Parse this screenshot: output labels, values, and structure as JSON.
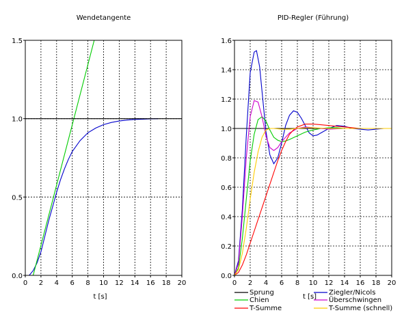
{
  "chart_data": [
    {
      "type": "line",
      "title": "Wendetangente",
      "xlabel": "t [s]",
      "ylabel": "",
      "xlim": [
        0,
        20
      ],
      "ylim": [
        0,
        1.5
      ],
      "xticks": [
        0,
        2,
        4,
        6,
        8,
        10,
        12,
        14,
        16,
        18,
        20
      ],
      "yticks": [
        0.0,
        0.5,
        1.0,
        1.5
      ],
      "ytick_labels": [
        "0.0",
        "0.5",
        "1.0",
        "1.5"
      ],
      "grid": true,
      "series": [
        {
          "color": "#0000cc",
          "x": [
            0,
            0.5,
            1,
            1.5,
            2,
            2.5,
            3,
            3.5,
            4,
            4.5,
            5,
            5.5,
            6,
            7,
            8,
            9,
            10,
            11,
            12,
            13,
            14,
            15,
            16,
            17
          ],
          "y": [
            0,
            0.0,
            0.03,
            0.08,
            0.15,
            0.25,
            0.35,
            0.44,
            0.53,
            0.61,
            0.68,
            0.74,
            0.79,
            0.86,
            0.91,
            0.94,
            0.962,
            0.976,
            0.985,
            0.991,
            0.995,
            0.997,
            0.999,
            1.0
          ]
        },
        {
          "color": "#00cc00",
          "x": [
            1.0,
            8.8
          ],
          "y": [
            0.0,
            1.5
          ]
        },
        {
          "color": "#000000",
          "x": [
            0,
            20
          ],
          "y": [
            1.0,
            1.0
          ]
        }
      ]
    },
    {
      "type": "line",
      "title": "PID-Regler (Führung)",
      "xlabel": "t [s]",
      "ylabel": "",
      "xlim": [
        0,
        20
      ],
      "ylim": [
        0,
        1.6
      ],
      "xticks": [
        0,
        2,
        4,
        6,
        8,
        10,
        12,
        14,
        16,
        18,
        20
      ],
      "yticks": [
        0,
        0.2,
        0.4,
        0.6,
        0.8,
        1.0,
        1.2,
        1.4,
        1.6
      ],
      "ytick_labels": [
        "0.0",
        "0.2",
        "0.4",
        "0.6",
        "0.8",
        "1.0",
        "1.2",
        "1.4",
        "1.6"
      ],
      "grid": true,
      "legend_position": "bottom",
      "series": [
        {
          "name": "Sprung",
          "color": "#000000",
          "x": [
            0,
            20
          ],
          "y": [
            1.0,
            1.0
          ]
        },
        {
          "name": "Ziegler/Nicols",
          "color": "#0000cc",
          "x": [
            0,
            0.5,
            1,
            1.5,
            2,
            2.5,
            2.8,
            3.2,
            3.6,
            4,
            4.5,
            5,
            5.5,
            6,
            6.5,
            7,
            7.5,
            8,
            8.5,
            9,
            9.5,
            10,
            10.5,
            11,
            12,
            13,
            14,
            15,
            16,
            17,
            18,
            19,
            20
          ],
          "y": [
            0,
            0.1,
            0.45,
            0.95,
            1.38,
            1.52,
            1.53,
            1.42,
            1.2,
            0.98,
            0.82,
            0.76,
            0.8,
            0.9,
            1.02,
            1.09,
            1.12,
            1.11,
            1.07,
            1.02,
            0.97,
            0.95,
            0.955,
            0.97,
            1.0,
            1.02,
            1.015,
            1.0,
            0.995,
            0.99,
            0.995,
            1.0,
            1.0
          ]
        },
        {
          "name": "Chien",
          "color": "#00cc00",
          "x": [
            0,
            0.5,
            1,
            1.5,
            2,
            2.5,
            3,
            3.5,
            4,
            4.5,
            5,
            5.5,
            6,
            6.5,
            7,
            8,
            9,
            10,
            11,
            12,
            13,
            14,
            16,
            18,
            20
          ],
          "y": [
            0,
            0.05,
            0.25,
            0.52,
            0.78,
            0.96,
            1.06,
            1.08,
            1.05,
            0.99,
            0.94,
            0.92,
            0.91,
            0.915,
            0.925,
            0.95,
            0.975,
            0.99,
            1.0,
            1.005,
            1.005,
            1.0,
            1.0,
            1.0,
            1.0
          ]
        },
        {
          "name": "Überschwingen",
          "color": "#cc00cc",
          "x": [
            0,
            0.5,
            1,
            1.5,
            2,
            2.5,
            3,
            3.5,
            4,
            4.5,
            5,
            5.5,
            6,
            7,
            8,
            9,
            10,
            11,
            12,
            14,
            16,
            18,
            20
          ],
          "y": [
            0,
            0.08,
            0.4,
            0.8,
            1.08,
            1.19,
            1.18,
            1.08,
            0.95,
            0.87,
            0.85,
            0.87,
            0.91,
            0.97,
            1.0,
            1.01,
            1.005,
            1.0,
            0.995,
            1.0,
            1.0,
            1.0,
            1.0
          ]
        },
        {
          "name": "T-Summe",
          "color": "#ff0000",
          "x": [
            0,
            0.5,
            1,
            1.5,
            2,
            2.5,
            3,
            3.5,
            4,
            4.5,
            5,
            5.5,
            6,
            6.5,
            7,
            7.5,
            8,
            9,
            10,
            11,
            12,
            13,
            14,
            15,
            16,
            18,
            20
          ],
          "y": [
            0,
            0.02,
            0.07,
            0.14,
            0.22,
            0.3,
            0.38,
            0.46,
            0.54,
            0.62,
            0.7,
            0.78,
            0.85,
            0.91,
            0.96,
            0.99,
            1.01,
            1.03,
            1.03,
            1.025,
            1.02,
            1.015,
            1.01,
            1.005,
            1.0,
            1.0,
            1.0
          ]
        },
        {
          "name": "T-Summe (schnell)",
          "color": "#ffcc00",
          "x": [
            0,
            0.5,
            1,
            1.5,
            2,
            2.5,
            3,
            3.5,
            4,
            4.5,
            5,
            6,
            7,
            8,
            9,
            10,
            12,
            14,
            16,
            18,
            20
          ],
          "y": [
            0,
            0.04,
            0.15,
            0.32,
            0.52,
            0.7,
            0.84,
            0.94,
            0.99,
            1.0,
            1.0,
            0.995,
            0.995,
            1.0,
            1.005,
            1.005,
            1.0,
            1.0,
            1.0,
            1.0,
            1.0
          ]
        }
      ]
    }
  ]
}
